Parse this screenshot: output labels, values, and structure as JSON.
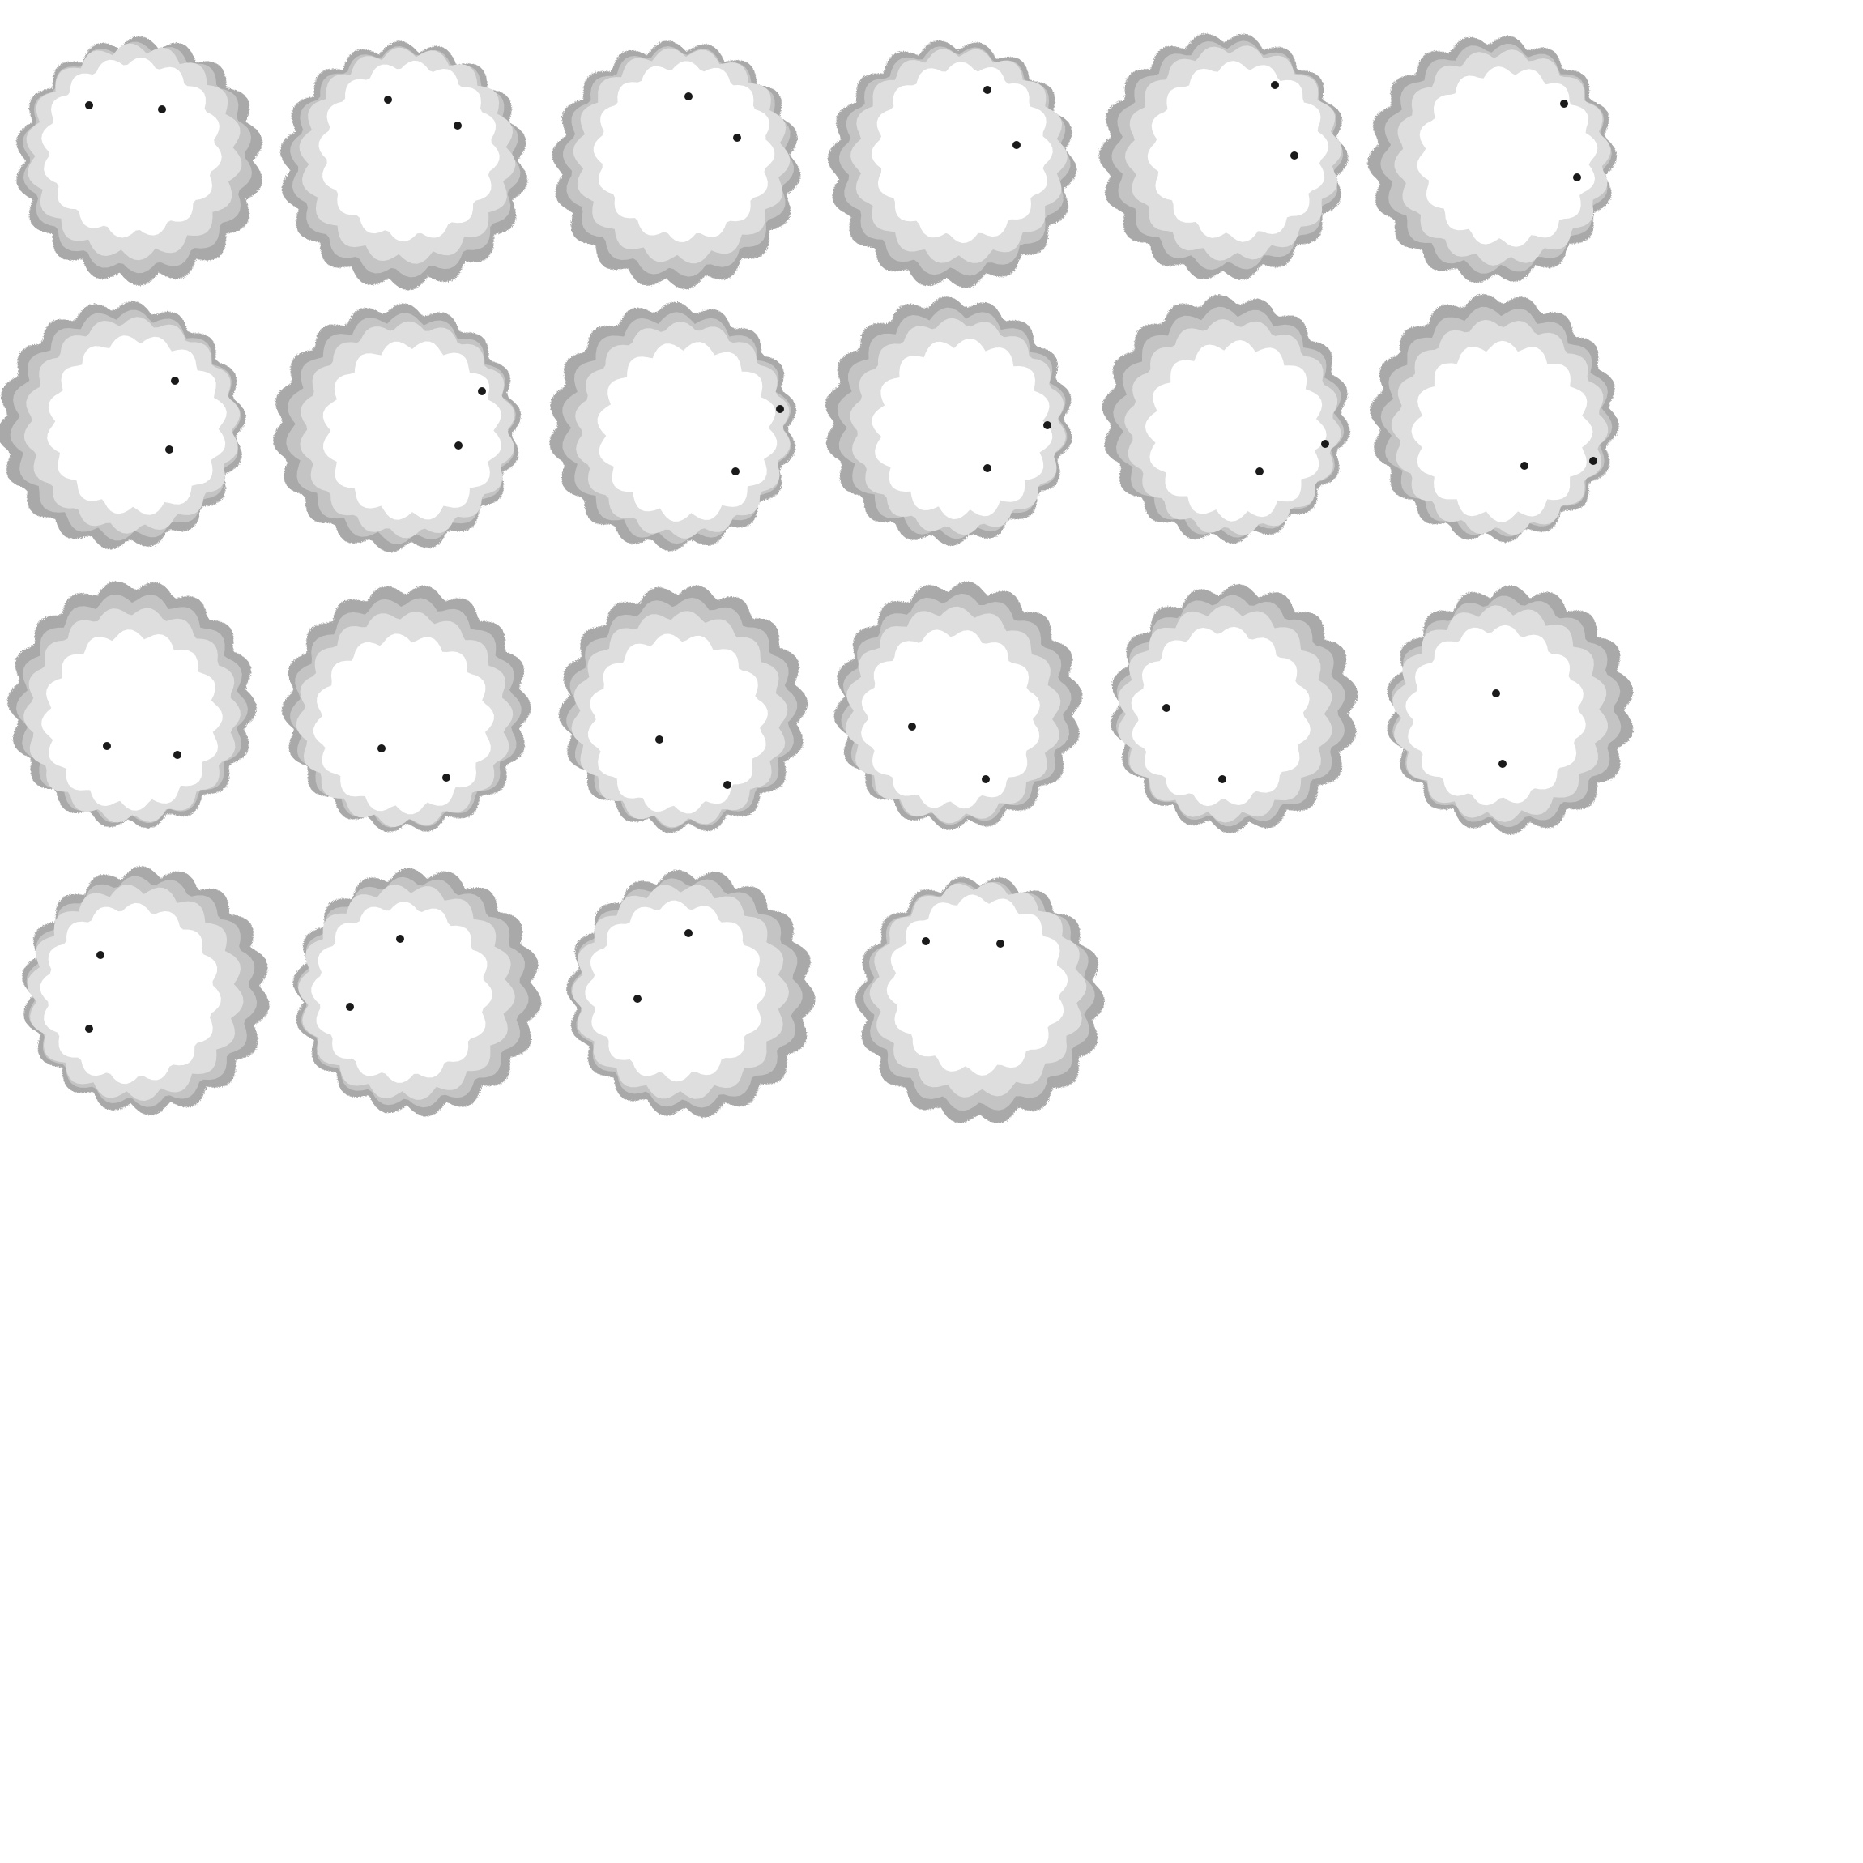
{
  "sprite_sheet": {
    "columns": 6,
    "frame_count": 22,
    "colors": {
      "background": "#ffffff",
      "cloud_outer": "#a9a9a9",
      "cloud_mid": "#c4c4c4",
      "cloud_inner": "#dedede",
      "cloud_core": "#ffffff",
      "eye": "#1a1a1a"
    },
    "icons": [
      "cloud-frame-icon",
      "eye-icon"
    ]
  }
}
